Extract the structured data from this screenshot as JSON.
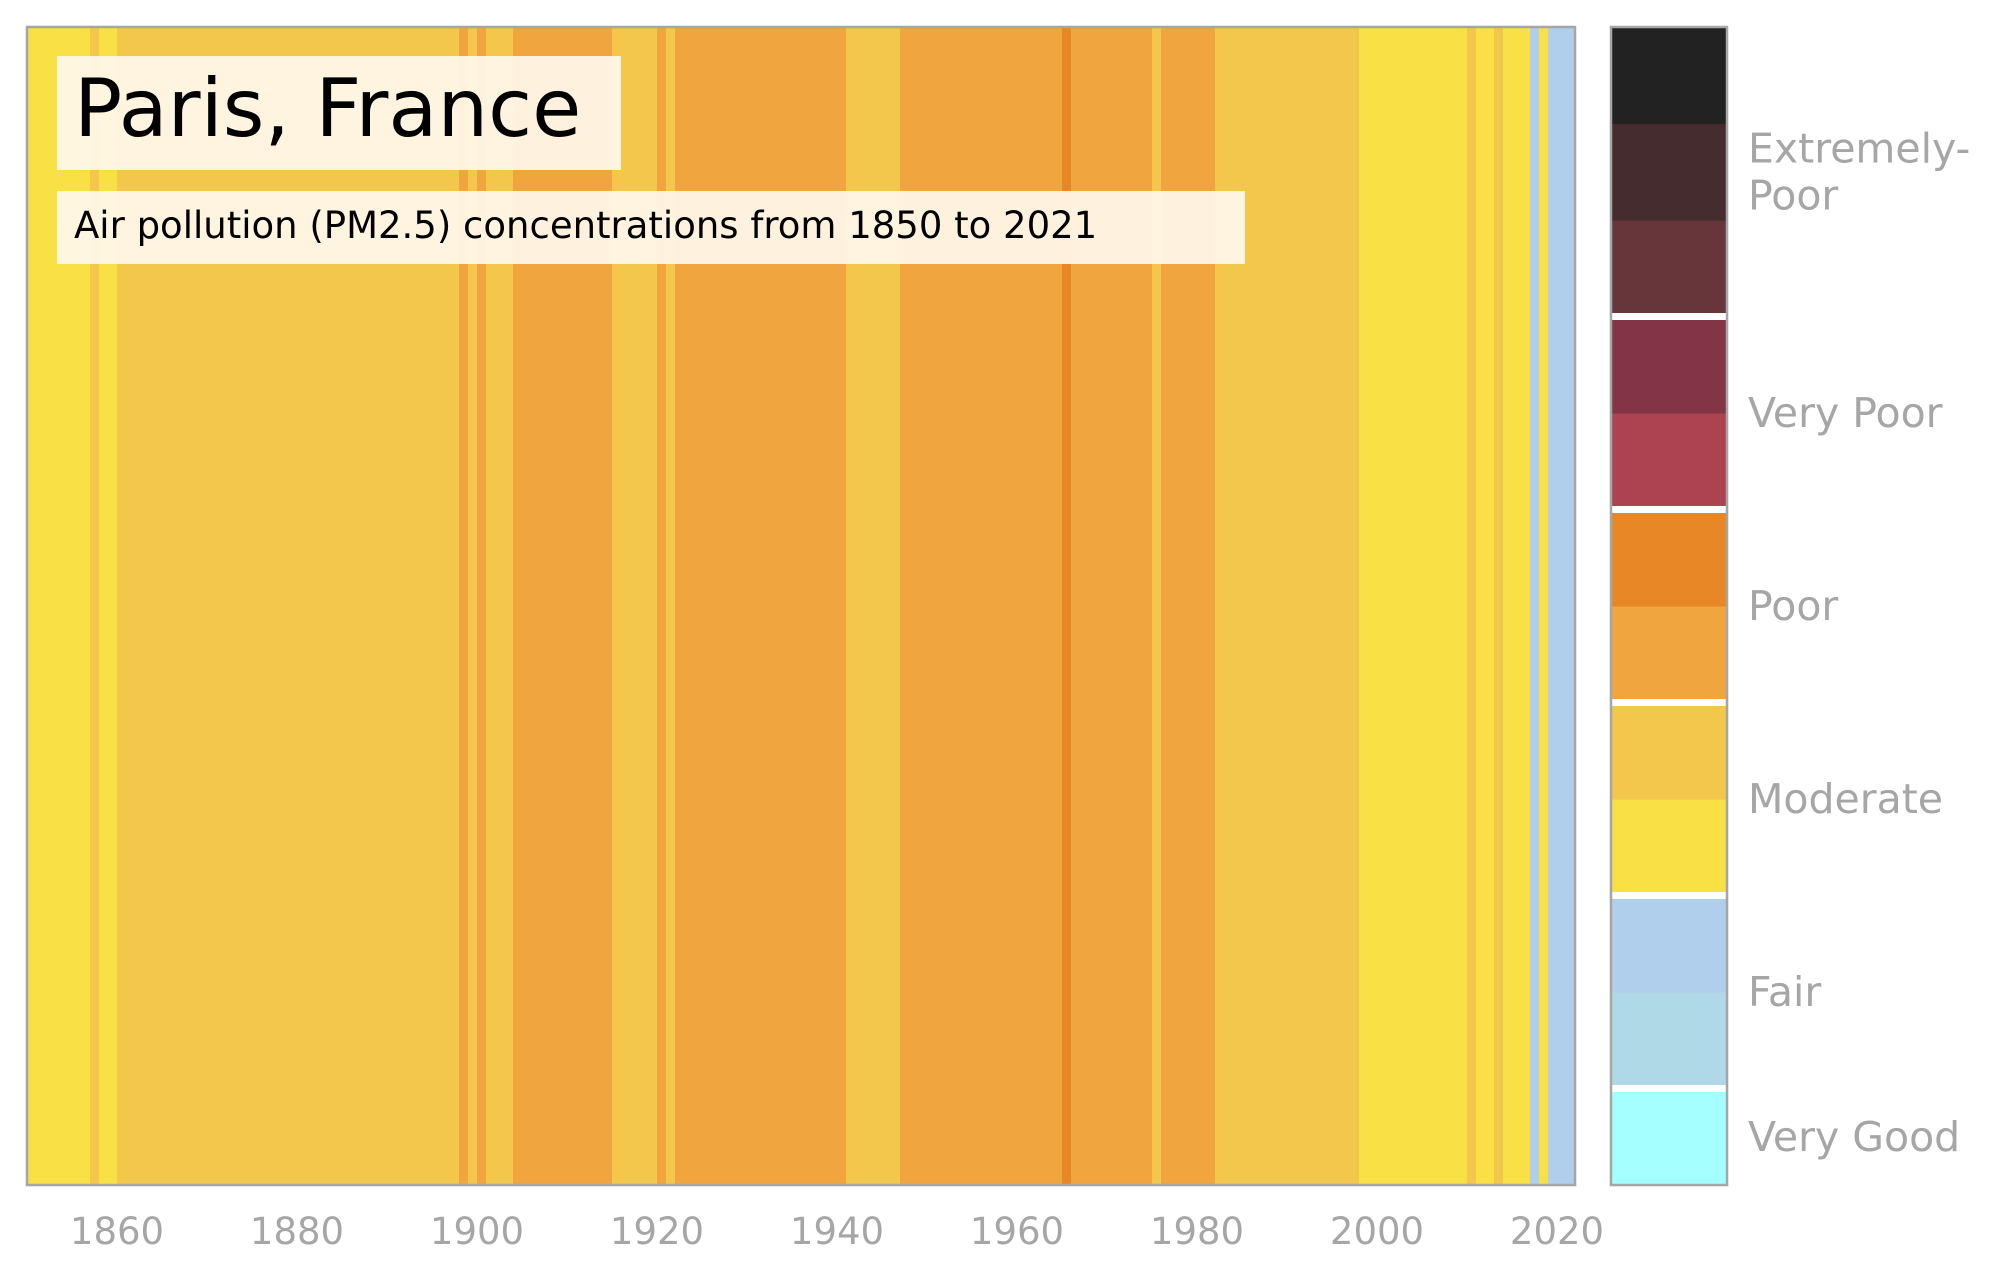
{
  "chart_data": {
    "type": "heatmap",
    "title": "Paris, France",
    "subtitle": "Air pollution (PM2.5) concentrations from 1850 to 2021",
    "x_ticks": [
      1860,
      1880,
      1900,
      1920,
      1940,
      1960,
      1980,
      2000,
      2020
    ],
    "xlim": [
      1850,
      2022
    ],
    "stripes": [
      {
        "start": 1850,
        "end": 1857,
        "level": "moderate-low"
      },
      {
        "start": 1857,
        "end": 1858,
        "level": "moderate-high"
      },
      {
        "start": 1858,
        "end": 1860,
        "level": "moderate-low"
      },
      {
        "start": 1860,
        "end": 1898,
        "level": "moderate-high"
      },
      {
        "start": 1898,
        "end": 1899,
        "level": "poor-low"
      },
      {
        "start": 1899,
        "end": 1900,
        "level": "moderate-high"
      },
      {
        "start": 1900,
        "end": 1901,
        "level": "poor-low"
      },
      {
        "start": 1901,
        "end": 1904,
        "level": "moderate-high"
      },
      {
        "start": 1904,
        "end": 1915,
        "level": "poor-low"
      },
      {
        "start": 1915,
        "end": 1920,
        "level": "moderate-high"
      },
      {
        "start": 1920,
        "end": 1921,
        "level": "poor-low"
      },
      {
        "start": 1921,
        "end": 1922,
        "level": "moderate-high"
      },
      {
        "start": 1922,
        "end": 1941,
        "level": "poor-low"
      },
      {
        "start": 1941,
        "end": 1947,
        "level": "moderate-high"
      },
      {
        "start": 1947,
        "end": 1965,
        "level": "poor-low"
      },
      {
        "start": 1965,
        "end": 1966,
        "level": "poor-high"
      },
      {
        "start": 1966,
        "end": 1975,
        "level": "poor-low"
      },
      {
        "start": 1975,
        "end": 1976,
        "level": "moderate-high"
      },
      {
        "start": 1976,
        "end": 1982,
        "level": "poor-low"
      },
      {
        "start": 1982,
        "end": 1998,
        "level": "moderate-high"
      },
      {
        "start": 1998,
        "end": 2010,
        "level": "moderate-low"
      },
      {
        "start": 2010,
        "end": 2011,
        "level": "moderate-high"
      },
      {
        "start": 2011,
        "end": 2013,
        "level": "moderate-low"
      },
      {
        "start": 2013,
        "end": 2014,
        "level": "moderate-high"
      },
      {
        "start": 2014,
        "end": 2017,
        "level": "moderate-low"
      },
      {
        "start": 2017,
        "end": 2018,
        "level": "fair-high"
      },
      {
        "start": 2018,
        "end": 2019,
        "level": "moderate-low"
      },
      {
        "start": 2019,
        "end": 2022,
        "level": "fair-high"
      }
    ],
    "palette": {
      "very-good": "#a5ffff",
      "fair-low": "#b0d9e8",
      "fair-high": "#b0cfec",
      "moderate-low": "#f8e045",
      "moderate-high": "#f2c74b",
      "poor-low": "#f0a53f",
      "poor-high": "#e88726",
      "very-poor-low": "#ad4250",
      "very-poor-high": "#843545",
      "extremely-poor-1": "#66363a",
      "extremely-poor-2": "#452c2e",
      "extremely-poor-3": "#222222"
    },
    "legend": {
      "categories": [
        {
          "label": "Very Good",
          "colors": [
            "very-good"
          ]
        },
        {
          "label": "Fair",
          "colors": [
            "fair-low",
            "fair-high"
          ]
        },
        {
          "label": "Moderate",
          "colors": [
            "moderate-low",
            "moderate-high"
          ]
        },
        {
          "label": "Poor",
          "colors": [
            "poor-low",
            "poor-high"
          ]
        },
        {
          "label": "Very Poor",
          "colors": [
            "very-poor-low",
            "very-poor-high"
          ]
        },
        {
          "label": "Extremely-\nPoor",
          "colors": [
            "extremely-poor-1",
            "extremely-poor-2",
            "extremely-poor-3"
          ]
        }
      ]
    },
    "colors": {
      "frame": "#a6a6a6",
      "title_box": "#fff8ec",
      "separator": "#ffffff"
    }
  }
}
